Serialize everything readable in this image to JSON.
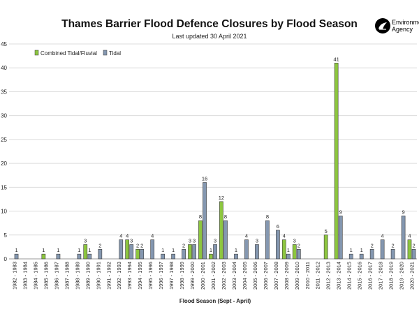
{
  "chart_data": {
    "type": "bar",
    "title": "Thames Barrier Flood Defence Closures by Flood Season",
    "subtitle": "Last updated  30 April 2021",
    "xlabel": "Flood Season (Sept - April)",
    "ylabel": "",
    "ylim": [
      0,
      45
    ],
    "yticks": [
      0,
      5,
      10,
      15,
      20,
      25,
      30,
      35,
      40,
      45
    ],
    "grid": true,
    "legend_position": "top-left",
    "categories": [
      "1982 - 1983",
      "1983 - 1984",
      "1984 - 1985",
      "1985 - 1986",
      "1986 - 1987",
      "1987 - 1988",
      "1988 - 1989",
      "1989 - 1990",
      "1990 - 1991",
      "1991 - 1992",
      "1992 - 1993",
      "1993 - 1994",
      "1994 - 1995",
      "1995 - 1996",
      "1996 - 1997",
      "1997 - 1998",
      "1998 - 1999",
      "1999 - 2000",
      "2000 - 2001",
      "2001 - 2002",
      "2002 - 2003",
      "2003 - 2004",
      "2004 - 2005",
      "2005 - 2006",
      "2006 - 2007",
      "2007 - 2008",
      "2008 - 2009",
      "2009 - 2010",
      "2010 - 2011",
      "2011 - 2012",
      "2012 - 2013",
      "2013 - 2014",
      "2014 - 2015",
      "2015 - 2016",
      "2016 - 2017",
      "2017 - 2018",
      "2018 - 2019",
      "2019 - 2020",
      "2020 - 2021"
    ],
    "series": [
      {
        "name": "Combined Tidal/Fluvial",
        "color": "#8dc63f",
        "values": [
          0,
          0,
          0,
          1,
          0,
          0,
          0,
          3,
          0,
          0,
          0,
          4,
          2,
          0,
          0,
          0,
          0,
          3,
          8,
          1,
          12,
          0,
          0,
          0,
          0,
          0,
          4,
          3,
          0,
          0,
          5,
          41,
          0,
          0,
          0,
          0,
          0,
          0,
          4
        ]
      },
      {
        "name": "Tidal",
        "color": "#8497b0",
        "values": [
          1,
          0,
          0,
          0,
          1,
          0,
          1,
          1,
          2,
          0,
          4,
          3,
          2,
          4,
          1,
          1,
          2,
          3,
          16,
          3,
          8,
          1,
          4,
          3,
          8,
          6,
          1,
          2,
          0,
          0,
          0,
          9,
          1,
          1,
          2,
          4,
          2,
          9,
          2
        ]
      }
    ]
  },
  "logo": {
    "line1": "Environment",
    "line2": "Agency"
  }
}
